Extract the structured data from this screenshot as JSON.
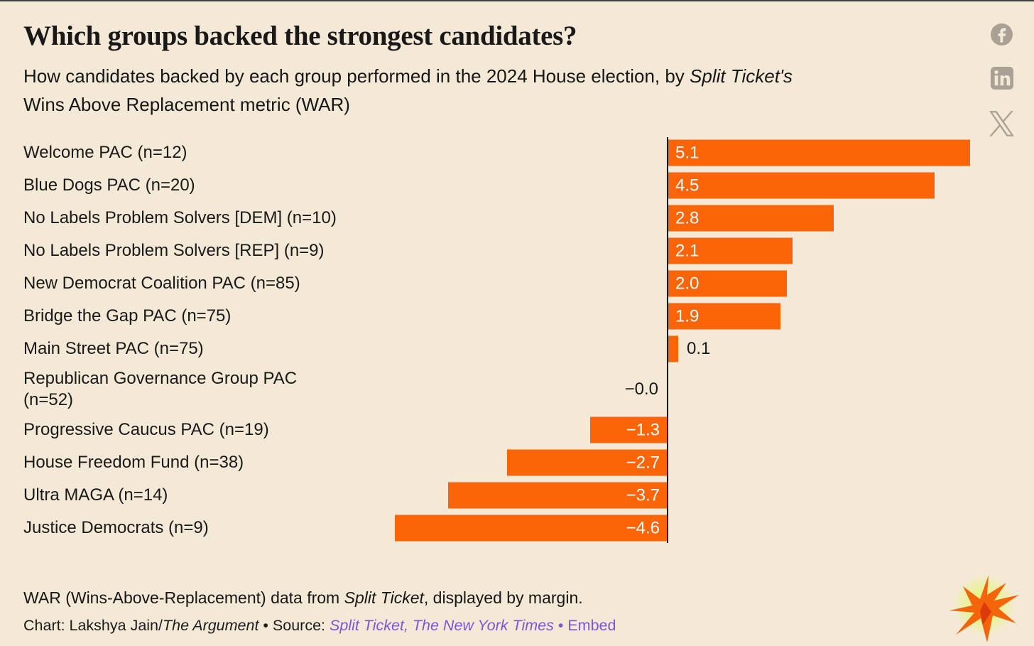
{
  "title": "Which groups backed the strongest candidates?",
  "subtitle": {
    "before_italic": "How candidates backed by each group performed in the 2024 House election, by ",
    "italic": "Split Ticket's",
    "line2": "Wins Above Replacement metric (WAR)"
  },
  "chart_data": {
    "type": "bar",
    "orientation": "horizontal",
    "title": "Which groups backed the strongest candidates?",
    "xlabel": "WAR (Wins Above Replacement)",
    "ylabel": "",
    "xlim": [
      -5.1,
      5.1
    ],
    "grid": false,
    "legend": false,
    "bar_color": "#FA6507",
    "categories": [
      "Welcome PAC (n=12)",
      "Blue Dogs PAC (n=20)",
      "No Labels Problem Solvers [DEM] (n=10)",
      "No Labels Problem Solvers [REP] (n=9)",
      "New Democrat Coalition PAC (n=85)",
      "Bridge the Gap PAC (n=75)",
      "Main Street PAC (n=75)",
      "Republican Governance Group PAC\n(n=52)",
      "Progressive Caucus PAC (n=19)",
      "House Freedom Fund (n=38)",
      "Ultra MAGA (n=14)",
      "Justice Democrats (n=9)"
    ],
    "values": [
      5.1,
      4.5,
      2.8,
      2.1,
      2.0,
      1.9,
      0.1,
      -0.0,
      -1.3,
      -2.7,
      -3.7,
      -4.6
    ],
    "value_labels": [
      "5.1",
      "4.5",
      "2.8",
      "2.1",
      "2.0",
      "1.9",
      "0.1",
      "−0.0",
      "−1.3",
      "−2.7",
      "−3.7",
      "−4.6"
    ]
  },
  "footer": {
    "note_before": "WAR (Wins-Above-Replacement) data from ",
    "note_italic": "Split Ticket",
    "note_after": ", displayed by margin.",
    "credit_prefix": "Chart: Lakshya Jain/",
    "credit_italic": "The Argument",
    "sep1": " • ",
    "source_label": "Source: ",
    "source_link": "Split Ticket, The New York Times",
    "sep2": " • ",
    "embed_link": "Embed"
  },
  "social": {
    "facebook": "Share on Facebook",
    "linkedin": "Share on LinkedIn",
    "x": "Share on X"
  },
  "colors": {
    "background": "#F4E9D6",
    "bar": "#FA6507",
    "text": "#191919",
    "link_purple": "#7A57D6",
    "icon_gray": "#A9A195",
    "axis": "#161616"
  }
}
